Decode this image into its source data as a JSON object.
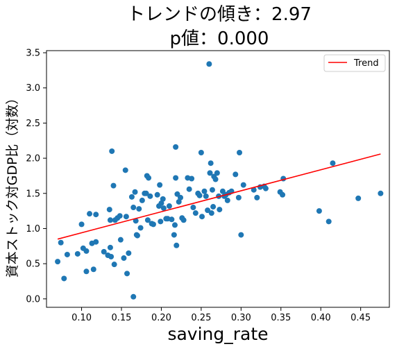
{
  "chart_data": {
    "type": "scatter",
    "title_lines": [
      "トレンドの傾き：2.97",
      "p値：0.000"
    ],
    "xlabel": "saving_rate",
    "ylabel": "資本ストック対GDP比（対数）",
    "xlim": [
      0.056,
      0.486
    ],
    "ylim": [
      -0.12,
      3.53
    ],
    "xticks": [
      0.1,
      0.15,
      0.2,
      0.25,
      0.3,
      0.35,
      0.4,
      0.45
    ],
    "xtick_labels": [
      "0.10",
      "0.15",
      "0.20",
      "0.25",
      "0.30",
      "0.35",
      "0.40",
      "0.45"
    ],
    "yticks": [
      0.0,
      0.5,
      1.0,
      1.5,
      2.0,
      2.5,
      3.0,
      3.5
    ],
    "ytick_labels": [
      "0.0",
      "0.5",
      "1.0",
      "1.5",
      "2.0",
      "2.5",
      "3.0",
      "3.5"
    ],
    "grid": false,
    "legend_position": "top-right",
    "colors": {
      "points": "#1f77b4",
      "trend": "#ff0000"
    },
    "trend": {
      "name": "Trend",
      "x": [
        0.07,
        0.475
      ],
      "y": [
        0.85,
        2.06
      ]
    },
    "points": [
      [
        0.07,
        0.53
      ],
      [
        0.074,
        0.8
      ],
      [
        0.078,
        0.29
      ],
      [
        0.082,
        0.63
      ],
      [
        0.095,
        0.64
      ],
      [
        0.1,
        1.06
      ],
      [
        0.102,
        0.72
      ],
      [
        0.106,
        0.68
      ],
      [
        0.106,
        0.39
      ],
      [
        0.11,
        1.21
      ],
      [
        0.113,
        0.79
      ],
      [
        0.115,
        0.42
      ],
      [
        0.118,
        0.81
      ],
      [
        0.118,
        1.2
      ],
      [
        0.128,
        0.67
      ],
      [
        0.133,
        0.62
      ],
      [
        0.135,
        1.27
      ],
      [
        0.136,
        1.12
      ],
      [
        0.136,
        0.73
      ],
      [
        0.137,
        0.6
      ],
      [
        0.138,
        2.1
      ],
      [
        0.14,
        1.61
      ],
      [
        0.141,
        0.49
      ],
      [
        0.142,
        1.12
      ],
      [
        0.145,
        1.15
      ],
      [
        0.148,
        1.18
      ],
      [
        0.149,
        0.84
      ],
      [
        0.153,
        0.58
      ],
      [
        0.155,
        1.83
      ],
      [
        0.156,
        1.17
      ],
      [
        0.157,
        0.36
      ],
      [
        0.159,
        0.65
      ],
      [
        0.163,
        1.45
      ],
      [
        0.165,
        0.03
      ],
      [
        0.165,
        1.3
      ],
      [
        0.167,
        1.52
      ],
      [
        0.168,
        1.11
      ],
      [
        0.169,
        0.91
      ],
      [
        0.17,
        0.9
      ],
      [
        0.172,
        1.28
      ],
      [
        0.174,
        1.01
      ],
      [
        0.176,
        1.4
      ],
      [
        0.179,
        1.5
      ],
      [
        0.181,
        1.5
      ],
      [
        0.182,
        1.75
      ],
      [
        0.183,
        1.12
      ],
      [
        0.184,
        1.72
      ],
      [
        0.186,
        1.46
      ],
      [
        0.188,
        1.07
      ],
      [
        0.19,
        1.06
      ],
      [
        0.195,
        1.48
      ],
      [
        0.197,
        1.32
      ],
      [
        0.198,
        1.62
      ],
      [
        0.199,
        1.1
      ],
      [
        0.2,
        1.36
      ],
      [
        0.202,
        1.42
      ],
      [
        0.203,
        1.29
      ],
      [
        0.206,
        1.14
      ],
      [
        0.208,
        1.14
      ],
      [
        0.21,
        1.32
      ],
      [
        0.213,
        1.13
      ],
      [
        0.216,
        0.91
      ],
      [
        0.217,
        1.05
      ],
      [
        0.218,
        1.72
      ],
      [
        0.218,
        2.16
      ],
      [
        0.219,
        0.76
      ],
      [
        0.22,
        1.49
      ],
      [
        0.222,
        1.38
      ],
      [
        0.224,
        1.44
      ],
      [
        0.226,
        1.15
      ],
      [
        0.228,
        1.12
      ],
      [
        0.233,
        1.72
      ],
      [
        0.235,
        1.56
      ],
      [
        0.238,
        1.71
      ],
      [
        0.24,
        1.3
      ],
      [
        0.243,
        1.22
      ],
      [
        0.246,
        1.5
      ],
      [
        0.248,
        1.47
      ],
      [
        0.25,
        2.08
      ],
      [
        0.251,
        1.17
      ],
      [
        0.254,
        1.53
      ],
      [
        0.256,
        1.46
      ],
      [
        0.258,
        1.26
      ],
      [
        0.26,
        3.34
      ],
      [
        0.261,
        1.79
      ],
      [
        0.262,
        1.93
      ],
      [
        0.263,
        1.22
      ],
      [
        0.264,
        1.55
      ],
      [
        0.265,
        1.31
      ],
      [
        0.266,
        1.74
      ],
      [
        0.268,
        1.7
      ],
      [
        0.27,
        1.79
      ],
      [
        0.272,
        1.46
      ],
      [
        0.273,
        1.27
      ],
      [
        0.277,
        1.53
      ],
      [
        0.279,
        1.46
      ],
      [
        0.281,
        1.48
      ],
      [
        0.283,
        1.4
      ],
      [
        0.285,
        1.51
      ],
      [
        0.288,
        1.53
      ],
      [
        0.293,
        1.77
      ],
      [
        0.297,
        1.44
      ],
      [
        0.298,
        2.08
      ],
      [
        0.3,
        0.91
      ],
      [
        0.303,
        1.62
      ],
      [
        0.316,
        1.55
      ],
      [
        0.32,
        1.44
      ],
      [
        0.324,
        1.59
      ],
      [
        0.329,
        1.6
      ],
      [
        0.331,
        1.57
      ],
      [
        0.349,
        1.52
      ],
      [
        0.352,
        1.48
      ],
      [
        0.353,
        1.71
      ],
      [
        0.398,
        1.25
      ],
      [
        0.41,
        1.1
      ],
      [
        0.415,
        1.93
      ],
      [
        0.447,
        1.43
      ],
      [
        0.475,
        1.5
      ]
    ]
  }
}
